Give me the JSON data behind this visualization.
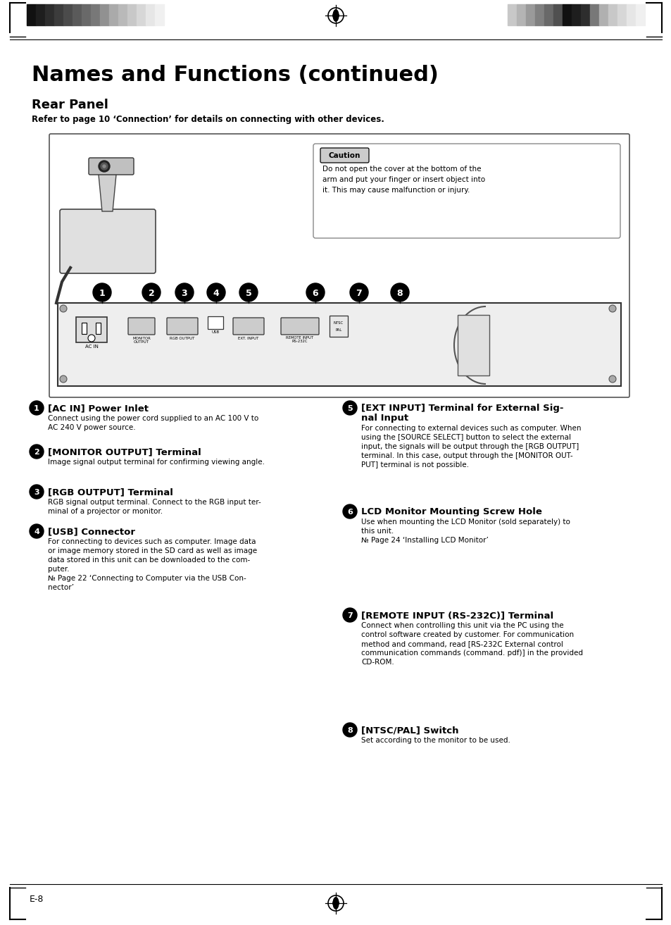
{
  "title": "Names and Functions (continued)",
  "subtitle": "Rear Panel",
  "subtitle2": "Refer to page 10 ‘Connection’ for details on connecting with other devices.",
  "caution_label": "Caution",
  "caution_lines": [
    "Do not open the cover at the bottom of the",
    "arm and put your finger or insert object into",
    "it. This may cause malfunction or injury."
  ],
  "items": [
    {
      "num": "1",
      "title": "[AC IN] Power Inlet",
      "body": "Connect using the power cord supplied to an AC 100 V to\nAC 240 V power source."
    },
    {
      "num": "2",
      "title": "[MONITOR OUTPUT] Terminal",
      "body": "Image signal output terminal for confirming viewing angle."
    },
    {
      "num": "3",
      "title": "[RGB OUTPUT] Terminal",
      "body": "RGB signal output terminal. Connect to the RGB input ter-\nminal of a projector or monitor."
    },
    {
      "num": "4",
      "title": "[USB] Connector",
      "body": "For connecting to devices such as computer. Image data\nor image memory stored in the SD card as well as image\ndata stored in this unit can be downloaded to the com-\nputer.\n№ Page 22 ‘Connecting to Computer via the USB Con-\nnector’"
    },
    {
      "num": "5",
      "title": "[EXT INPUT] Terminal for External Sig-\nnal Input",
      "body": "For connecting to external devices such as computer. When\nusing the [SOURCE SELECT] button to select the external\ninput, the signals will be output through the [RGB OUTPUT]\nterminal. In this case, output through the [MONITOR OUT-\nPUT] terminal is not possible."
    },
    {
      "num": "6",
      "title": "LCD Monitor Mounting Screw Hole",
      "body": "Use when mounting the LCD Monitor (sold separately) to\nthis unit.\n№ Page 24 ‘Installing LCD Monitor’"
    },
    {
      "num": "7",
      "title": "[REMOTE INPUT (RS-232C)] Terminal",
      "body": "Connect when controlling this unit via the PC using the\ncontrol software created by customer. For communication\nmethod and command, read [RS-232C External control\ncommunication commands (command. pdf)] in the provided\nCD-ROM."
    },
    {
      "num": "8",
      "title": "[NTSC/PAL] Switch",
      "body": "Set according to the monitor to be used."
    }
  ],
  "page_label": "E-8",
  "bg_color": "#ffffff",
  "text_color": "#000000"
}
